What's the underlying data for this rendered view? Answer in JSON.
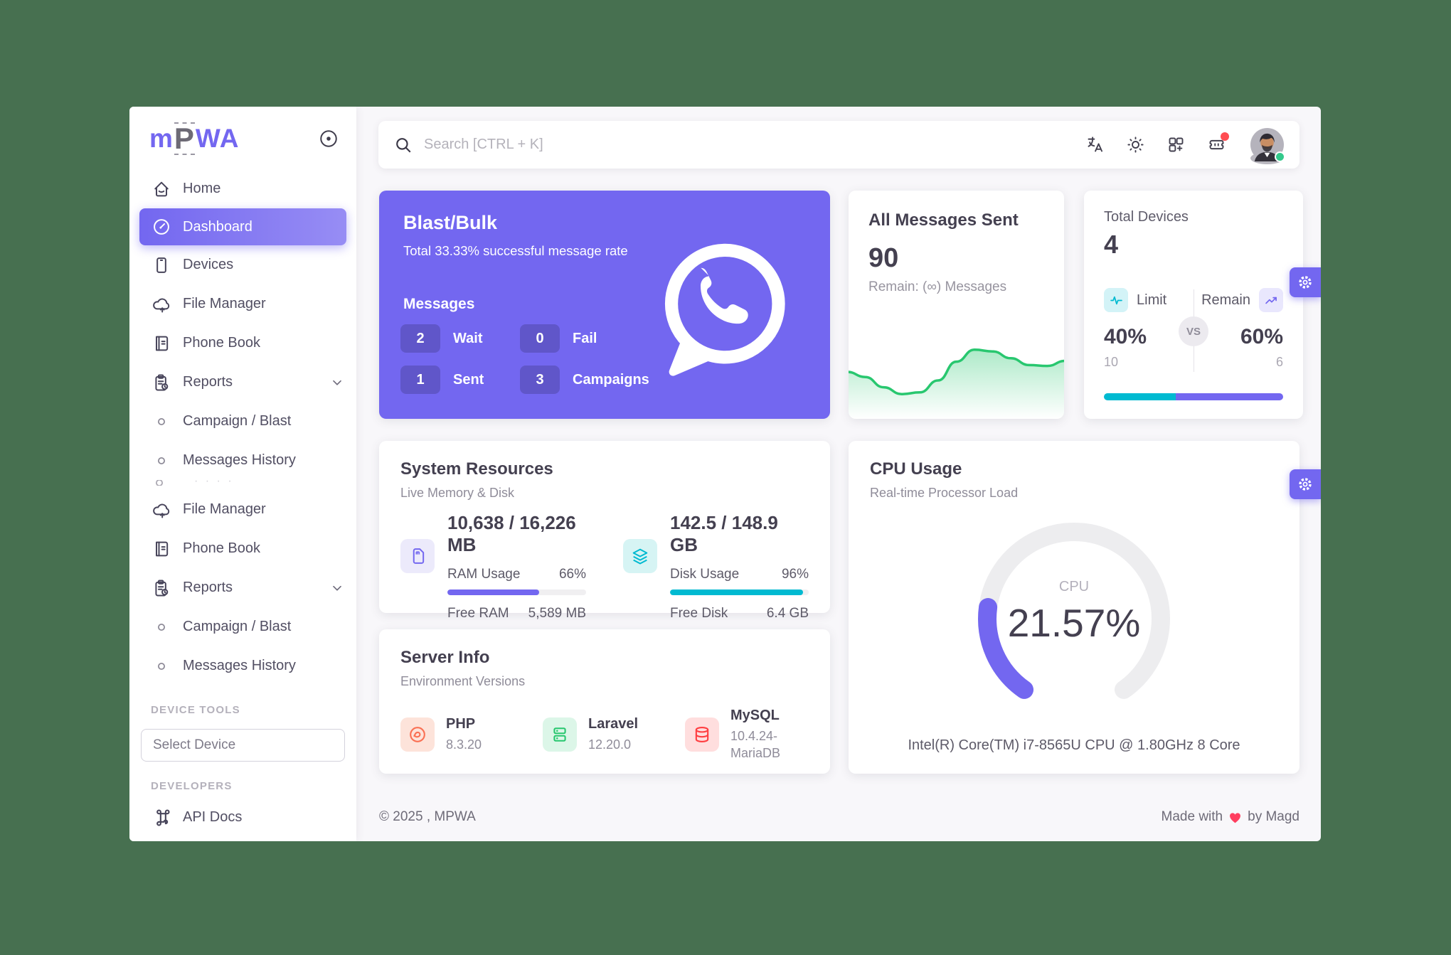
{
  "colors": {
    "backdrop": "#477050",
    "primary": "#7367F0",
    "teal": "#00BAD1",
    "green": "#28C76F",
    "red": "#FF4C51",
    "heart": "#ff3e5f"
  },
  "brand": {
    "name": "MPWA",
    "part1": "m",
    "part2": "P",
    "part3": "WA"
  },
  "topbar": {
    "search_placeholder": "Search [CTRL + K]",
    "icons": [
      "language-icon",
      "theme-icon",
      "apps-icon",
      "notifications-icon",
      "avatar"
    ]
  },
  "sidebar": {
    "items": [
      {
        "label": "Home",
        "icon": "home",
        "active": false,
        "chevron": false
      },
      {
        "label": "Dashboard",
        "icon": "dashboard",
        "active": true,
        "chevron": false
      },
      {
        "label": "Devices",
        "icon": "devices",
        "active": false,
        "chevron": false
      },
      {
        "label": "File Manager",
        "icon": "file-manager",
        "active": false,
        "chevron": false
      },
      {
        "label": "Phone Book",
        "icon": "phone-book",
        "active": false,
        "chevron": false
      },
      {
        "label": "Reports",
        "icon": "reports",
        "active": false,
        "chevron": true
      },
      {
        "label": "Campaign / Blast",
        "icon": "dot",
        "active": false,
        "chevron": false
      },
      {
        "label": "Messages History",
        "icon": "dot",
        "active": false,
        "chevron": false
      },
      {
        "label": "File Manager",
        "icon": "file-manager",
        "active": false,
        "chevron": false
      },
      {
        "label": "Phone Book",
        "icon": "phone-book",
        "active": false,
        "chevron": false
      },
      {
        "label": "Reports",
        "icon": "reports",
        "active": false,
        "chevron": true
      },
      {
        "label": "Campaign / Blast",
        "icon": "dot",
        "active": false,
        "chevron": false
      },
      {
        "label": "Messages History",
        "icon": "dot",
        "active": false,
        "chevron": false
      }
    ],
    "device_tools_label": "DEVICE TOOLS",
    "select_device_placeholder": "Select Device",
    "developers_label": "DEVELOPERS",
    "api_docs": {
      "label": "API Docs",
      "icon": "api"
    }
  },
  "cards": {
    "blast": {
      "title": "Blast/Bulk",
      "subtitle": "Total 33.33% successful message rate",
      "messages_label": "Messages",
      "stats": [
        {
          "value": "2",
          "label": "Wait"
        },
        {
          "value": "0",
          "label": "Fail"
        },
        {
          "value": "1",
          "label": "Sent"
        },
        {
          "value": "3",
          "label": "Campaigns"
        }
      ]
    },
    "all_messages": {
      "title": "All Messages Sent",
      "value": "90",
      "remain": "Remain: (∞) Messages",
      "sparkline": [
        50,
        44,
        32,
        24,
        26,
        40,
        62,
        76,
        74,
        66,
        58,
        57,
        63
      ],
      "line_color": "#28C76F"
    },
    "total_devices": {
      "title": "Total Devices",
      "value": "4",
      "left": {
        "label": "Limit",
        "percent": "40%",
        "count": "10"
      },
      "right": {
        "label": "Remain",
        "percent": "60%",
        "count": "6"
      },
      "vs": "VS",
      "bar": {
        "left_pct": 40,
        "right_pct": 60,
        "left_color": "#00BAD1",
        "right_color": "#7367F0"
      }
    },
    "system": {
      "title": "System Resources",
      "subtitle": "Live Memory & Disk",
      "ram": {
        "total": "10,638 / 16,226 MB",
        "usage_label": "RAM Usage",
        "usage_pct_text": "66%",
        "pct": 66,
        "free_label": "Free RAM",
        "free_value": "5,589 MB",
        "fill_color": "#7367F0"
      },
      "disk": {
        "total": "142.5 / 148.9 GB",
        "usage_label": "Disk Usage",
        "usage_pct_text": "96%",
        "pct": 96,
        "free_label": "Free Disk",
        "free_value": "6.4 GB",
        "fill_color": "#00BAD1"
      }
    },
    "server": {
      "title": "Server Info",
      "subtitle": "Environment Versions",
      "items": [
        {
          "name": "PHP",
          "version": "8.3.20",
          "icon": "php",
          "chip_class": "chip-php"
        },
        {
          "name": "Laravel",
          "version": "12.20.0",
          "icon": "laravel",
          "chip_class": "chip-laravel"
        },
        {
          "name": "MySQL",
          "version": "10.4.24-MariaDB",
          "icon": "mysql",
          "chip_class": "chip-mysql"
        }
      ]
    },
    "cpu": {
      "title": "CPU Usage",
      "subtitle": "Real-time Processor Load",
      "gauge_label": "CPU",
      "percent_text": "21.57%",
      "percent": 21.57,
      "footer": "Intel(R) Core(TM) i7-8565U CPU @ 1.80GHz 8 Core",
      "gauge_color": "#7367F0",
      "track_color": "#ededef"
    }
  },
  "chart_data": [
    {
      "type": "area",
      "title": "All Messages Sent sparkline",
      "values": [
        50,
        44,
        32,
        24,
        26,
        40,
        62,
        76,
        74,
        66,
        58,
        57,
        63
      ],
      "color": "#28C76F"
    },
    {
      "type": "pie",
      "title": "Total Devices Limit vs Remain",
      "categories": [
        "Limit",
        "Remain"
      ],
      "values": [
        40,
        60
      ]
    },
    {
      "type": "bar",
      "title": "Resource usage %",
      "categories": [
        "RAM",
        "Disk",
        "CPU"
      ],
      "values": [
        66,
        96,
        21.57
      ]
    }
  ],
  "footer": {
    "left": "© 2025 , MPWA",
    "made_with": "Made with",
    "by": "by Magd"
  }
}
